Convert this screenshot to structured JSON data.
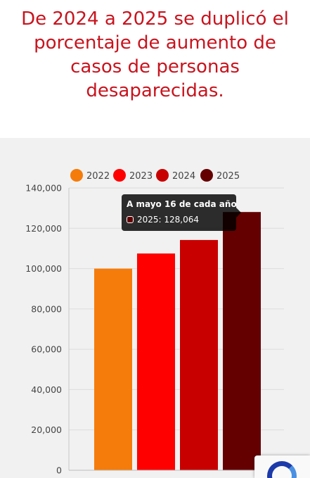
{
  "headline": {
    "text": "De 2024 a 2025 se duplicó el porcentaje de aumento de casos de personas desaparecidas."
  },
  "chart_data": {
    "type": "bar",
    "categories": [
      "2022",
      "2023",
      "2024",
      "2025"
    ],
    "values": [
      100000,
      107500,
      114200,
      128064
    ],
    "colors": [
      "#f57c0a",
      "#ff0000",
      "#c80000",
      "#640000"
    ],
    "legend": {
      "position": "top",
      "entries": [
        "2022",
        "2023",
        "2024",
        "2025"
      ]
    },
    "ylim": [
      0,
      140000
    ],
    "yticks": [
      0,
      20000,
      40000,
      60000,
      80000,
      100000,
      120000,
      140000
    ],
    "ytick_labels": [
      "0",
      "20,000",
      "40,000",
      "60,000",
      "80,000",
      "100,000",
      "120,000",
      "140,000"
    ],
    "grid": true,
    "tooltip": {
      "title": "A mayo 16 de cada año",
      "label": "2025: 128,064",
      "color": "#640000"
    }
  },
  "colors": {
    "headline": "#c8141e",
    "panel_background": "#f1f1f1",
    "gridline": "#dcdcdc",
    "axis_text": "#444444",
    "tooltip_background": "#000000"
  },
  "icons": {
    "recaptcha": "recaptcha-icon"
  }
}
